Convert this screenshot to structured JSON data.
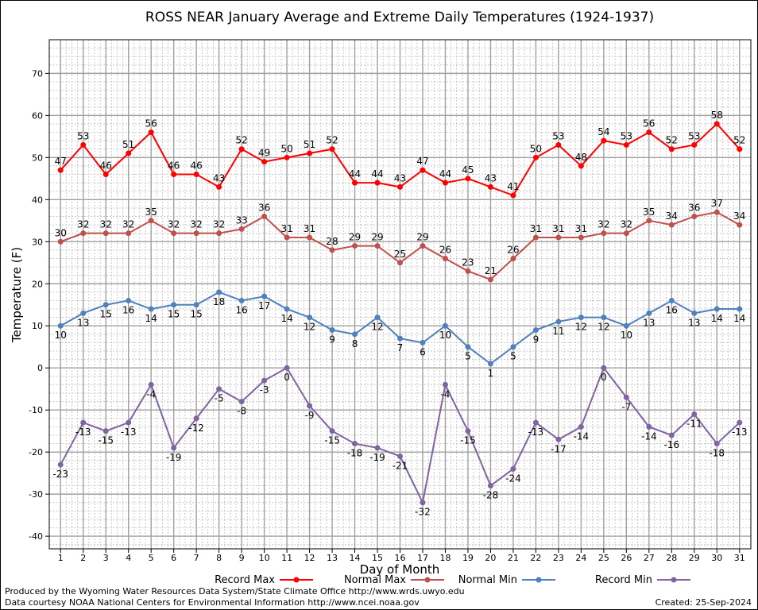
{
  "chart_data": {
    "type": "line",
    "title": "ROSS NEAR January Average and Extreme Daily Temperatures (1924-1937)",
    "xlabel": "Day of Month",
    "ylabel": "Temperature (F)",
    "x": [
      1,
      2,
      3,
      4,
      5,
      6,
      7,
      8,
      9,
      10,
      11,
      12,
      13,
      14,
      15,
      16,
      17,
      18,
      19,
      20,
      21,
      22,
      23,
      24,
      25,
      26,
      27,
      28,
      29,
      30,
      31
    ],
    "xlim": [
      0.5,
      31.5
    ],
    "ylim": [
      -43,
      78
    ],
    "yticks": [
      -40,
      -30,
      -20,
      -10,
      0,
      10,
      20,
      30,
      40,
      50,
      60,
      70
    ],
    "grid": true,
    "legend_position": "bottom",
    "series": [
      {
        "name": "Record Max",
        "color": "#ff0000",
        "label_position": "above",
        "values": [
          47,
          53,
          46,
          51,
          56,
          46,
          46,
          43,
          52,
          49,
          50,
          51,
          52,
          44,
          44,
          43,
          47,
          44,
          45,
          43,
          41,
          50,
          53,
          48,
          54,
          53,
          56,
          52,
          53,
          58,
          52
        ]
      },
      {
        "name": "Normal Max",
        "color": "#c0504d",
        "label_position": "above",
        "values": [
          30,
          32,
          32,
          32,
          35,
          32,
          32,
          32,
          33,
          36,
          31,
          31,
          28,
          29,
          29,
          25,
          29,
          26,
          23,
          21,
          26,
          31,
          31,
          31,
          32,
          32,
          35,
          34,
          36,
          37,
          34
        ]
      },
      {
        "name": "Normal Min",
        "color": "#4f81bd",
        "label_position": "below",
        "values": [
          10,
          13,
          15,
          16,
          14,
          15,
          15,
          18,
          16,
          17,
          14,
          12,
          9,
          8,
          12,
          7,
          6,
          10,
          5,
          1,
          5,
          9,
          11,
          12,
          12,
          10,
          13,
          16,
          13,
          14,
          14
        ]
      },
      {
        "name": "Record Min",
        "color": "#8064a2",
        "label_position": "below",
        "values": [
          -23,
          -13,
          -15,
          -13,
          -4,
          -19,
          -12,
          -5,
          -8,
          -3,
          0,
          -9,
          -15,
          -18,
          -19,
          -21,
          -32,
          -4,
          -15,
          -28,
          -24,
          -13,
          -17,
          -14,
          0,
          -7,
          -14,
          -16,
          -11,
          -18,
          -13
        ]
      }
    ]
  },
  "footer": {
    "produced_by": "Produced by the Wyoming Water Resources Data System/State Climate Office http://www.wrds.uwyo.edu",
    "data_courtesy": "Data courtesy NOAA National Centers for Environmental Information http://www.ncei.noaa.gov",
    "created": "Created:  25-Sep-2024"
  }
}
